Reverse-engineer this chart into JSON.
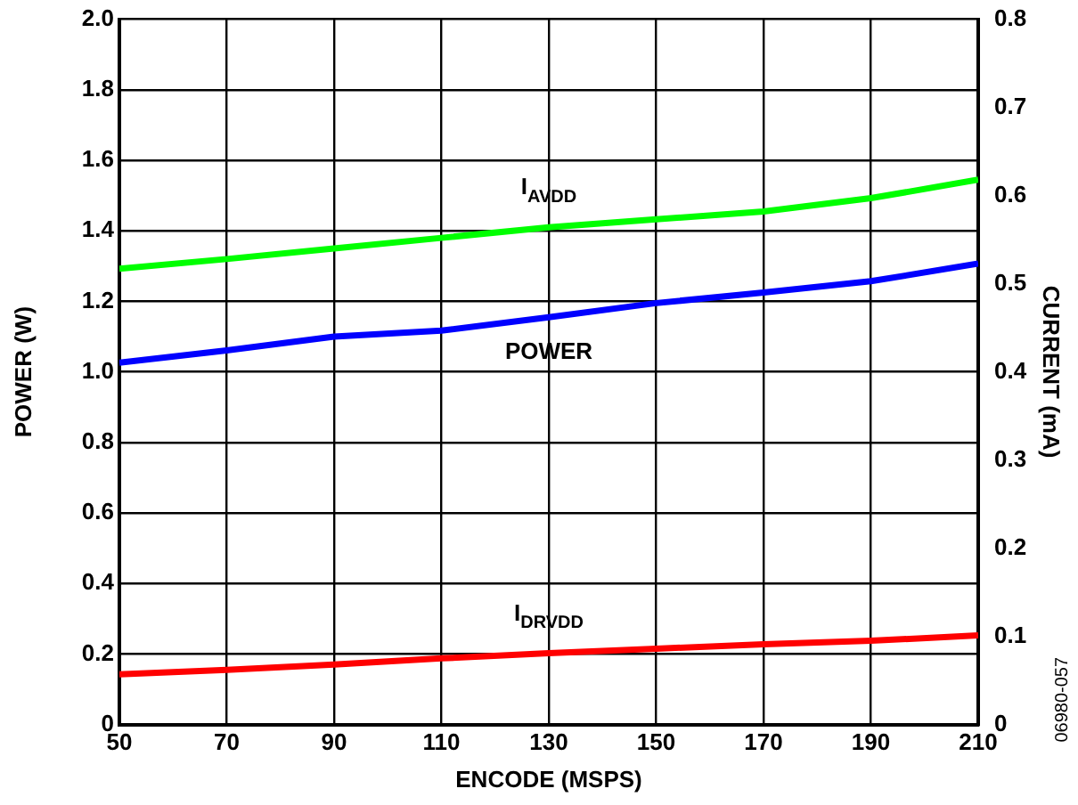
{
  "chart_data": {
    "type": "line",
    "x": [
      50,
      70,
      90,
      110,
      130,
      150,
      170,
      190,
      210
    ],
    "series": [
      {
        "name": "I$_{AVDD}$",
        "color": "#00ff00",
        "axis": "y2",
        "values": [
          0.517,
          0.528,
          0.54,
          0.552,
          0.564,
          0.573,
          0.582,
          0.597,
          0.618
        ]
      },
      {
        "name": "POWER",
        "color": "#0000ff",
        "values": [
          1.026,
          1.061,
          1.1,
          1.117,
          1.155,
          1.195,
          1.225,
          1.257,
          1.307
        ]
      },
      {
        "name": "I$_{DRVDD}$",
        "color": "#ff0000",
        "axis": "y2",
        "values": [
          0.057,
          0.062,
          0.068,
          0.075,
          0.081,
          0.086,
          0.091,
          0.095,
          0.101
        ]
      }
    ],
    "xlabel": "ENCODE (MSPS)",
    "ylabel": "POWER (W)",
    "y2label": "CURRENT (mA)",
    "xlim": [
      50,
      210
    ],
    "xticks": [
      50,
      70,
      90,
      110,
      130,
      150,
      170,
      190,
      210
    ],
    "ylim": [
      0,
      2.0
    ],
    "yticks": [
      {
        "value": 0,
        "label": "0"
      },
      {
        "value": 0.2,
        "label": "0.2"
      },
      {
        "value": 0.4,
        "label": "0.4"
      },
      {
        "value": 0.6,
        "label": "0.6"
      },
      {
        "value": 0.8,
        "label": "0.8"
      },
      {
        "value": 1.0,
        "label": "1.0"
      },
      {
        "value": 1.2,
        "label": "1.2"
      },
      {
        "value": 1.4,
        "label": "1.4"
      },
      {
        "value": 1.6,
        "label": "1.6"
      },
      {
        "value": 1.8,
        "label": "1.8"
      },
      {
        "value": 2.0,
        "label": "2.0"
      }
    ],
    "y2lim": [
      0,
      0.8
    ],
    "y2ticks": [
      0,
      0.1,
      0.2,
      0.3,
      0.4,
      0.5,
      0.6,
      0.7,
      0.8
    ],
    "annotations": [
      "06980-057"
    ],
    "grid": true,
    "legend": false,
    "marker": "none",
    "line_style": "solid"
  }
}
